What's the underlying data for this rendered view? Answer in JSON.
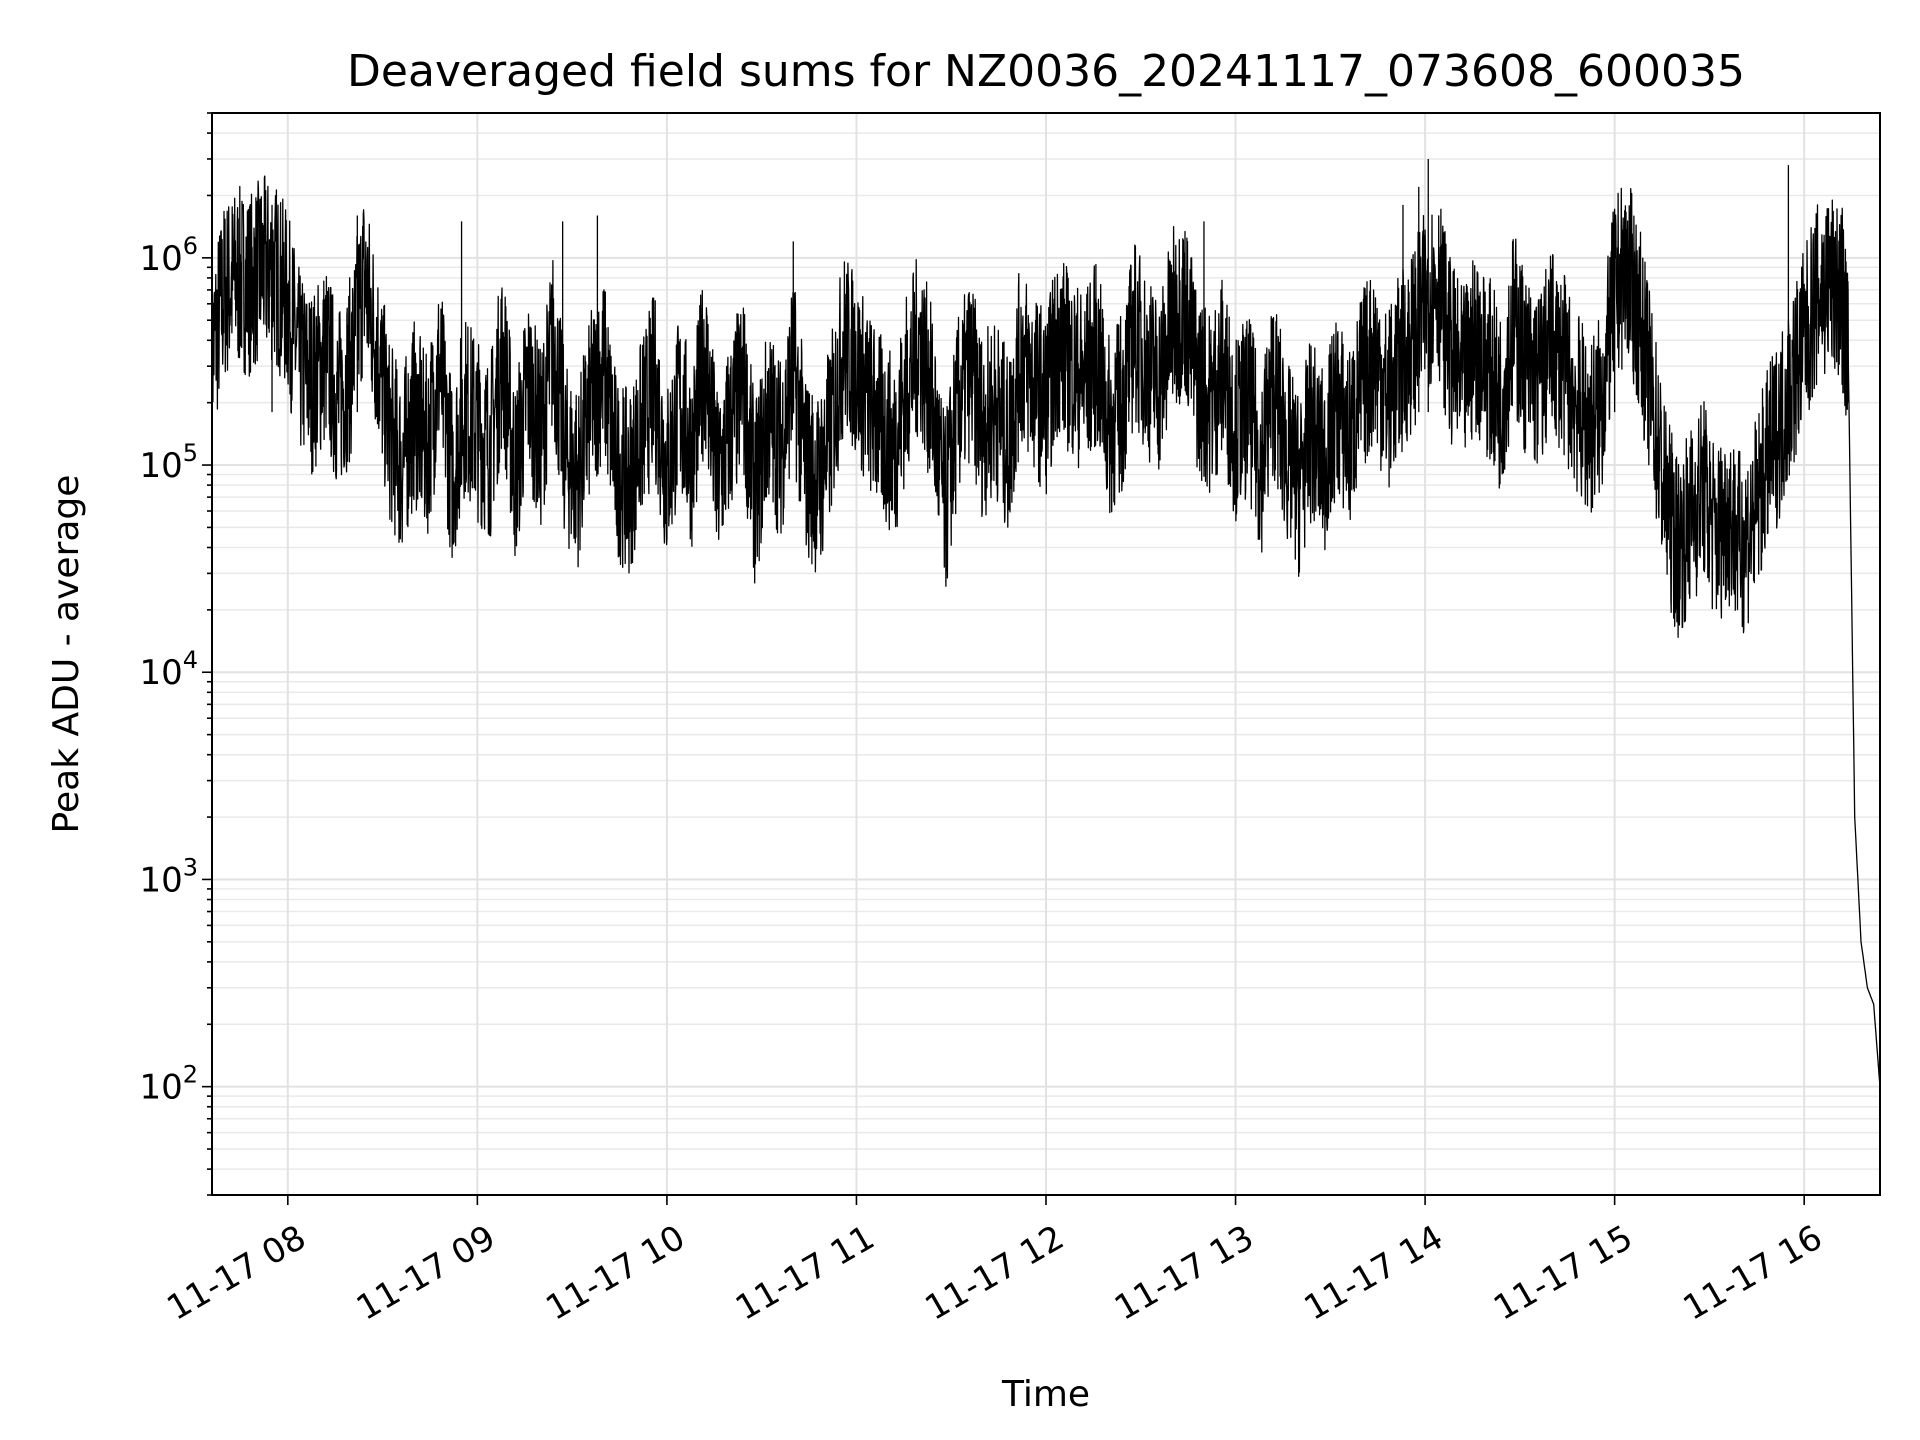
{
  "chart_data": {
    "type": "line",
    "title": "Deaveraged field sums for NZ0036_20241117_073608_600035",
    "xlabel": "Time",
    "ylabel": "Peak ADU - average",
    "yscale": "log",
    "ylim": [
      30,
      5000000
    ],
    "xlim": [
      "2024-11-17 07:36",
      "2024-11-17 16:24"
    ],
    "grid": true,
    "x_ticks": [
      {
        "value": "2024-11-17 08:00",
        "label": "11-17 08"
      },
      {
        "value": "2024-11-17 09:00",
        "label": "11-17 09"
      },
      {
        "value": "2024-11-17 10:00",
        "label": "11-17 10"
      },
      {
        "value": "2024-11-17 11:00",
        "label": "11-17 11"
      },
      {
        "value": "2024-11-17 12:00",
        "label": "11-17 12"
      },
      {
        "value": "2024-11-17 13:00",
        "label": "11-17 13"
      },
      {
        "value": "2024-11-17 14:00",
        "label": "11-17 14"
      },
      {
        "value": "2024-11-17 15:00",
        "label": "11-17 15"
      },
      {
        "value": "2024-11-17 16:00",
        "label": "11-17 16"
      }
    ],
    "y_ticks": [
      {
        "value": 100,
        "base": "10",
        "exp": "2"
      },
      {
        "value": 1000,
        "base": "10",
        "exp": "3"
      },
      {
        "value": 10000,
        "base": "10",
        "exp": "4"
      },
      {
        "value": 100000,
        "base": "10",
        "exp": "5"
      },
      {
        "value": 1000000,
        "base": "10",
        "exp": "6"
      }
    ],
    "series": [
      {
        "color": "#000000",
        "x": [
          "2024-11-17 07:36",
          "2024-11-17 07:40",
          "2024-11-17 07:44",
          "2024-11-17 07:48",
          "2024-11-17 07:52",
          "2024-11-17 07:56",
          "2024-11-17 08:00",
          "2024-11-17 08:04",
          "2024-11-17 08:08",
          "2024-11-17 08:12",
          "2024-11-17 08:16",
          "2024-11-17 08:20",
          "2024-11-17 08:24",
          "2024-11-17 08:28",
          "2024-11-17 08:32",
          "2024-11-17 08:36",
          "2024-11-17 08:40",
          "2024-11-17 08:44",
          "2024-11-17 08:48",
          "2024-11-17 08:52",
          "2024-11-17 08:56",
          "2024-11-17 09:00",
          "2024-11-17 09:04",
          "2024-11-17 09:08",
          "2024-11-17 09:12",
          "2024-11-17 09:16",
          "2024-11-17 09:20",
          "2024-11-17 09:24",
          "2024-11-17 09:28",
          "2024-11-17 09:32",
          "2024-11-17 09:36",
          "2024-11-17 09:40",
          "2024-11-17 09:44",
          "2024-11-17 09:48",
          "2024-11-17 09:52",
          "2024-11-17 09:56",
          "2024-11-17 10:00",
          "2024-11-17 10:04",
          "2024-11-17 10:08",
          "2024-11-17 10:12",
          "2024-11-17 10:16",
          "2024-11-17 10:20",
          "2024-11-17 10:24",
          "2024-11-17 10:28",
          "2024-11-17 10:32",
          "2024-11-17 10:36",
          "2024-11-17 10:40",
          "2024-11-17 10:44",
          "2024-11-17 10:48",
          "2024-11-17 10:52",
          "2024-11-17 10:56",
          "2024-11-17 11:00",
          "2024-11-17 11:04",
          "2024-11-17 11:08",
          "2024-11-17 11:12",
          "2024-11-17 11:16",
          "2024-11-17 11:20",
          "2024-11-17 11:24",
          "2024-11-17 11:28",
          "2024-11-17 11:32",
          "2024-11-17 11:36",
          "2024-11-17 11:40",
          "2024-11-17 11:44",
          "2024-11-17 11:48",
          "2024-11-17 11:52",
          "2024-11-17 11:56",
          "2024-11-17 12:00",
          "2024-11-17 12:04",
          "2024-11-17 12:08",
          "2024-11-17 12:12",
          "2024-11-17 12:16",
          "2024-11-17 12:20",
          "2024-11-17 12:24",
          "2024-11-17 12:28",
          "2024-11-17 12:32",
          "2024-11-17 12:36",
          "2024-11-17 12:40",
          "2024-11-17 12:44",
          "2024-11-17 12:48",
          "2024-11-17 12:52",
          "2024-11-17 12:56",
          "2024-11-17 13:00",
          "2024-11-17 13:04",
          "2024-11-17 13:08",
          "2024-11-17 13:12",
          "2024-11-17 13:16",
          "2024-11-17 13:20",
          "2024-11-17 13:24",
          "2024-11-17 13:28",
          "2024-11-17 13:32",
          "2024-11-17 13:36",
          "2024-11-17 13:40",
          "2024-11-17 13:44",
          "2024-11-17 13:48",
          "2024-11-17 13:52",
          "2024-11-17 13:56",
          "2024-11-17 14:00",
          "2024-11-17 14:04",
          "2024-11-17 14:08",
          "2024-11-17 14:12",
          "2024-11-17 14:16",
          "2024-11-17 14:20",
          "2024-11-17 14:24",
          "2024-11-17 14:28",
          "2024-11-17 14:32",
          "2024-11-17 14:36",
          "2024-11-17 14:40",
          "2024-11-17 14:44",
          "2024-11-17 14:48",
          "2024-11-17 14:52",
          "2024-11-17 14:56",
          "2024-11-17 15:00",
          "2024-11-17 15:04",
          "2024-11-17 15:08",
          "2024-11-17 15:12",
          "2024-11-17 15:16",
          "2024-11-17 15:20",
          "2024-11-17 15:24",
          "2024-11-17 15:28",
          "2024-11-17 15:32",
          "2024-11-17 15:36",
          "2024-11-17 15:40",
          "2024-11-17 15:44",
          "2024-11-17 15:48",
          "2024-11-17 15:52",
          "2024-11-17 15:56",
          "2024-11-17 16:00",
          "2024-11-17 16:04",
          "2024-11-17 16:08",
          "2024-11-17 16:12",
          "2024-11-17 16:14",
          "2024-11-17 16:16",
          "2024-11-17 16:18",
          "2024-11-17 16:20",
          "2024-11-17 16:22",
          "2024-11-17 16:24"
        ],
        "y": [
          350000,
          700000,
          800000,
          750000,
          900000,
          850000,
          600000,
          300000,
          250000,
          350000,
          200000,
          300000,
          800000,
          400000,
          150000,
          100000,
          180000,
          120000,
          300000,
          90000,
          200000,
          150000,
          120000,
          350000,
          90000,
          250000,
          130000,
          400000,
          110000,
          90000,
          200000,
          300000,
          100000,
          80000,
          150000,
          250000,
          90000,
          200000,
          110000,
          350000,
          80000,
          150000,
          250000,
          70000,
          180000,
          120000,
          300000,
          100000,
          80000,
          150000,
          400000,
          300000,
          200000,
          150000,
          120000,
          250000,
          400000,
          200000,
          60000,
          180000,
          300000,
          150000,
          200000,
          120000,
          350000,
          250000,
          200000,
          400000,
          300000,
          250000,
          350000,
          150000,
          200000,
          450000,
          300000,
          250000,
          500000,
          600000,
          250000,
          200000,
          300000,
          150000,
          200000,
          100000,
          250000,
          120000,
          80000,
          150000,
          100000,
          200000,
          130000,
          250000,
          350000,
          200000,
          300000,
          400000,
          600000,
          800000,
          350000,
          250000,
          400000,
          300000,
          200000,
          500000,
          300000,
          250000,
          400000,
          300000,
          200000,
          150000,
          200000,
          700000,
          900000,
          500000,
          200000,
          70000,
          40000,
          55000,
          80000,
          45000,
          60000,
          40000,
          55000,
          100000,
          150000,
          250000,
          400000,
          650000,
          750000,
          650000,
          300000,
          2000,
          500,
          300,
          250,
          100
        ]
      },
      {
        "color": "#000000",
        "name_hint": "",
        "x": [
          "2024-11-17 07:55",
          "2024-11-17 08:22",
          "2024-11-17 08:55",
          "2024-11-17 09:27",
          "2024-11-17 09:38",
          "2024-11-17 10:40",
          "2024-11-17 12:50",
          "2024-11-17 13:53",
          "2024-11-17 13:58",
          "2024-11-17 14:01",
          "2024-11-17 15:00",
          "2024-11-17 15:55"
        ],
        "y": [
          1800000,
          1600000,
          1500000,
          1500000,
          1600000,
          1200000,
          1500000,
          1800000,
          2200000,
          3000000,
          1500000,
          2800000
        ]
      }
    ]
  }
}
